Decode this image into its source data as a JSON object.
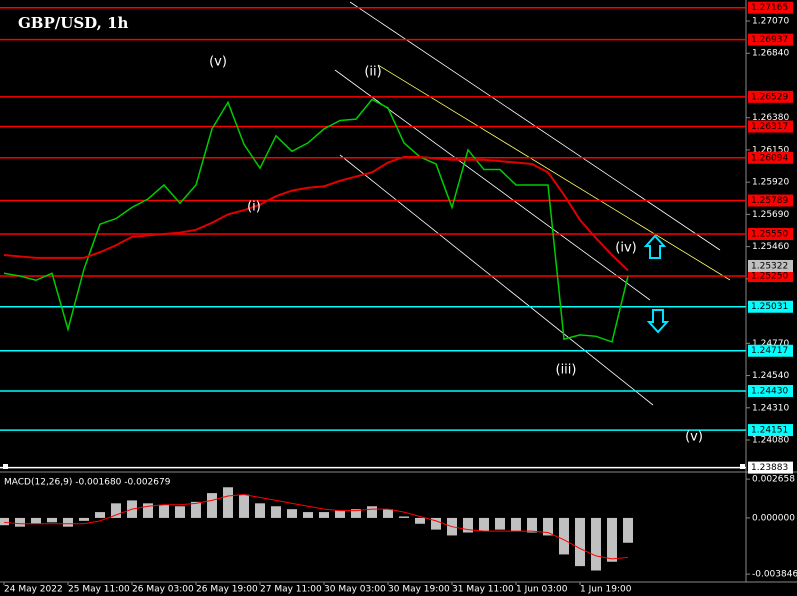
{
  "chart_data": [
    {
      "type": "line",
      "title": "GBP/USD, 1h",
      "categories": [
        "24 May 2022",
        null,
        null,
        null,
        "25 May 11:00",
        null,
        null,
        null,
        "26 May 03:00",
        null,
        null,
        null,
        "26 May 19:00",
        null,
        null,
        null,
        "27 May 11:00",
        null,
        null,
        null,
        "30 May 03:00",
        null,
        null,
        null,
        "30 May 19:00",
        null,
        null,
        null,
        "31 May 11:00",
        null,
        null,
        null,
        "1 Jun 03:00",
        null,
        null,
        null,
        "1 Jun 19:00",
        null,
        null,
        null
      ],
      "series": [
        {
          "color": "#00cc00",
          "values": [
            1.2527,
            1.2525,
            1.2522,
            1.2527,
            1.2487,
            1.253,
            1.2562,
            1.2566,
            1.2574,
            1.258,
            1.259,
            1.2577,
            1.259,
            1.263,
            1.2649,
            1.2619,
            1.2602,
            1.2625,
            1.2614,
            1.262,
            1.263,
            1.2636,
            1.2637,
            1.2651,
            1.2645,
            1.262,
            1.261,
            1.2605,
            1.2574,
            1.2615,
            1.2601,
            1.2601,
            1.259,
            1.259,
            1.259,
            1.248,
            1.2483,
            1.2482,
            1.2478,
            1.2525
          ]
        },
        {
          "color": "#e00000",
          "values": [
            1.254,
            1.2539,
            1.2538,
            1.2538,
            1.2538,
            1.2538,
            1.2542,
            1.2547,
            1.2553,
            1.2554,
            1.2555,
            1.2556,
            1.2558,
            1.2563,
            1.2569,
            1.2572,
            1.2576,
            1.2582,
            1.2586,
            1.2588,
            1.2589,
            1.2593,
            1.2596,
            1.2599,
            1.2606,
            1.261,
            1.261,
            1.2609,
            1.2608,
            1.2608,
            1.2608,
            1.2607,
            1.2606,
            1.2605,
            1.2599,
            1.2583,
            1.2565,
            1.2552,
            1.254,
            1.2529
          ]
        }
      ],
      "ylim": [
        1.23866,
        1.2722
      ],
      "yticks": [
        {
          "value": 1.2707,
          "label": "1.27070"
        },
        {
          "value": 1.2684,
          "label": "1.26840"
        },
        {
          "value": 1.2638,
          "label": "1.26380"
        },
        {
          "value": 1.2615,
          "label": "1.26150"
        },
        {
          "value": 1.2592,
          "label": "1.25920"
        },
        {
          "value": 1.2569,
          "label": "1.25690"
        },
        {
          "value": 1.2546,
          "label": "1.25460"
        },
        {
          "value": 1.2523,
          "label": "1.25230"
        },
        {
          "value": 1.2477,
          "label": "1.24770"
        },
        {
          "value": 1.2454,
          "label": "1.24540"
        },
        {
          "value": 1.2431,
          "label": "1.24310"
        },
        {
          "value": 1.2408,
          "label": "1.24080"
        }
      ],
      "levels": [
        {
          "value": 1.27165,
          "label": "1.27165",
          "color": "#ff0000"
        },
        {
          "value": 1.26937,
          "label": "1.26937",
          "color": "#ff0000"
        },
        {
          "value": 1.26529,
          "label": "1.26529",
          "color": "#ff0000"
        },
        {
          "value": 1.26317,
          "label": "1.26317",
          "color": "#ff0000"
        },
        {
          "value": 1.26094,
          "label": "1.26094",
          "color": "#ff0000"
        },
        {
          "value": 1.25789,
          "label": "1.25789",
          "color": "#ff0000"
        },
        {
          "value": 1.2555,
          "label": "1.25550",
          "color": "#ff0000"
        },
        {
          "value": 1.2525,
          "label": "1.25250",
          "color": "#ff0000"
        },
        {
          "value": 1.25031,
          "label": "1.25031",
          "color": "#00ffff"
        },
        {
          "value": 1.24717,
          "label": "1.24717",
          "color": "#00ffff"
        },
        {
          "value": 1.2443,
          "label": "1.24430",
          "color": "#00ffff"
        },
        {
          "value": 1.24151,
          "label": "1.24151",
          "color": "#00ffff"
        },
        {
          "value": 1.23883,
          "label": "1.23883",
          "color": "#ffffff"
        }
      ],
      "current_price": {
        "value": 1.25322,
        "label": "1.25322"
      },
      "annotations": [
        "(v)",
        "(ii)",
        "(i)",
        "(iv)",
        "(iii)",
        "(v)"
      ]
    },
    {
      "type": "macd",
      "title": "MACD(12,26,9) -0.001680 -0.002679",
      "ylim": [
        -0.00425,
        0.003008
      ],
      "yticks": [
        0.002658,
        {
          "value": 0,
          "label": "0.000000"
        },
        -0.003846
      ],
      "series": [
        {
          "color": "#c0c0c0",
          "values": [
            -0.0005,
            -0.0006,
            -0.0004,
            -0.0003,
            -0.0006,
            -0.0002,
            0.0004,
            0.001,
            0.0012,
            0.001,
            0.0009,
            0.0008,
            0.0011,
            0.0017,
            0.0021,
            0.0016,
            0.001,
            0.0008,
            0.0006,
            0.0004,
            0.0004,
            0.0005,
            0.0006,
            0.0008,
            0.0006,
            0.0001,
            -0.0004,
            -0.0008,
            -0.0012,
            -0.001,
            -0.0009,
            -0.0008,
            -0.0009,
            -0.001,
            -0.0012,
            -0.0025,
            -0.0033,
            -0.0036,
            -0.003,
            -0.0017
          ]
        },
        {
          "color": "#ff0000",
          "values": [
            -0.0003,
            -0.0004,
            -0.0004,
            -0.0004,
            -0.0004,
            -0.0004,
            -0.0002,
            0.0002,
            0.0006,
            0.0008,
            0.0009,
            0.0009,
            0.001,
            0.0012,
            0.0015,
            0.0016,
            0.0014,
            0.0012,
            0.001,
            0.0008,
            0.0006,
            0.0005,
            0.0005,
            0.0006,
            0.0006,
            0.0004,
            0.0001,
            -0.0002,
            -0.0006,
            -0.0008,
            -0.0009,
            -0.0009,
            -0.0009,
            -0.0009,
            -0.001,
            -0.0015,
            -0.0021,
            -0.0026,
            -0.0028,
            -0.0027
          ]
        }
      ]
    }
  ]
}
